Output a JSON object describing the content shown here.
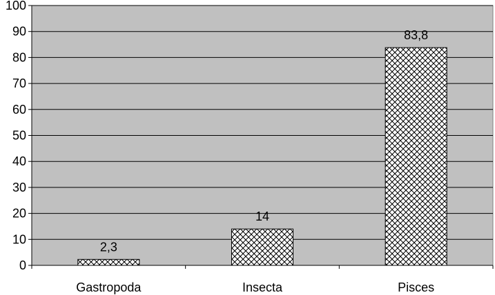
{
  "chart_data": {
    "type": "bar",
    "title": "",
    "xlabel": "",
    "ylabel": "",
    "categories": [
      "Gastropoda",
      "Insecta",
      "Pisces"
    ],
    "values": [
      2.3,
      14,
      83.8
    ],
    "data_labels": [
      "2,3",
      "14",
      "83,8"
    ],
    "ylim": [
      0,
      100
    ],
    "yticks": [
      0,
      10,
      20,
      30,
      40,
      50,
      60,
      70,
      80,
      90,
      100
    ],
    "ytick_labels": [
      "0",
      "10",
      "20",
      "30",
      "40",
      "50",
      "60",
      "70",
      "80",
      "90",
      "100"
    ],
    "grid": true,
    "legend": "none",
    "plot_background": "#c0c0c0",
    "bar_fill": "crosshatch"
  }
}
